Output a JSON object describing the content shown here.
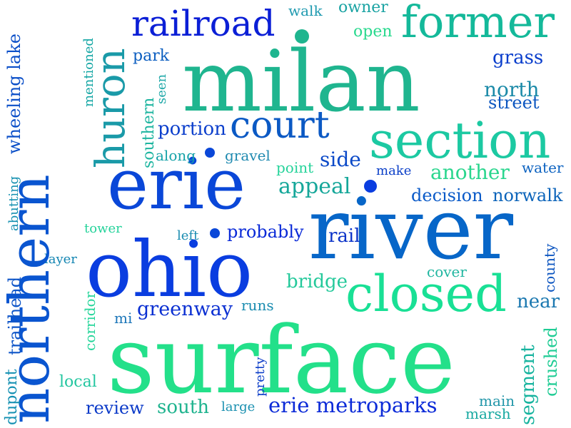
{
  "words": [
    {
      "id": "surface",
      "text": "surface",
      "color": "#23E08A"
    },
    {
      "id": "milan",
      "text": "milan",
      "color": "#1FB58F"
    },
    {
      "id": "river",
      "text": "river",
      "color": "#0766C8"
    },
    {
      "id": "ohio",
      "text": "ohio",
      "color": "#0A3DE0"
    },
    {
      "id": "erie",
      "text": "erie",
      "color": "#0A47D8"
    },
    {
      "id": "northern",
      "text": "northern",
      "color": "#0A55D0"
    },
    {
      "id": "section",
      "text": "section",
      "color": "#1CC9A2"
    },
    {
      "id": "closed",
      "text": "closed",
      "color": "#19E095"
    },
    {
      "id": "former",
      "text": "former",
      "color": "#14B99A"
    },
    {
      "id": "court",
      "text": "court",
      "color": "#0B59C4"
    },
    {
      "id": "railroad",
      "text": "railroad",
      "color": "#0B1FD6"
    },
    {
      "id": "huron",
      "text": "huron",
      "color": "#1A9AA8"
    },
    {
      "id": "erie-metroparks",
      "text": "erie metroparks",
      "color": "#0C2BD8"
    },
    {
      "id": "greenway",
      "text": "greenway",
      "color": "#0A2FD2"
    },
    {
      "id": "another",
      "text": "another",
      "color": "#2AD68E"
    },
    {
      "id": "appeal",
      "text": "appeal",
      "color": "#16A79A"
    },
    {
      "id": "grass",
      "text": "grass",
      "color": "#0A3ECC"
    },
    {
      "id": "north",
      "text": "north",
      "color": "#1B8AA8"
    },
    {
      "id": "street",
      "text": "street",
      "color": "#0C56C0"
    },
    {
      "id": "wheeling-lake",
      "text": "wheeling lake",
      "color": "#0B4FC8"
    },
    {
      "id": "probably",
      "text": "probably",
      "color": "#0A2AD8"
    },
    {
      "id": "rail",
      "text": "rail",
      "color": "#0B33C8"
    },
    {
      "id": "side",
      "text": "side",
      "color": "#0C4AC8"
    },
    {
      "id": "portion",
      "text": "portion",
      "color": "#0C3FCC"
    },
    {
      "id": "bridge",
      "text": "bridge",
      "color": "#25C99B"
    },
    {
      "id": "near",
      "text": "near",
      "color": "#1B78B0"
    },
    {
      "id": "decision",
      "text": "decision",
      "color": "#0A5AC8"
    },
    {
      "id": "norwalk",
      "text": "norwalk",
      "color": "#0C64BA"
    },
    {
      "id": "southern",
      "text": "southern",
      "color": "#1EB5A0"
    },
    {
      "id": "trailhead",
      "text": "trailhead",
      "color": "#0F56C8"
    },
    {
      "id": "south",
      "text": "south",
      "color": "#1EB38E"
    },
    {
      "id": "review",
      "text": "review",
      "color": "#0B3AC8"
    },
    {
      "id": "segment",
      "text": "segment",
      "color": "#16B39E"
    },
    {
      "id": "crushed",
      "text": "crushed",
      "color": "#1FCC94"
    },
    {
      "id": "mentioned",
      "text": "mentioned",
      "color": "#13A6A4"
    },
    {
      "id": "park",
      "text": "park",
      "color": "#0C5EC0"
    },
    {
      "id": "owner",
      "text": "owner",
      "color": "#1AA3A3"
    },
    {
      "id": "open",
      "text": "open",
      "color": "#29D98E"
    },
    {
      "id": "walk",
      "text": "walk",
      "color": "#1F9AB0"
    },
    {
      "id": "seen",
      "text": "seen",
      "color": "#1FA8A8"
    },
    {
      "id": "along",
      "text": "along",
      "color": "#15A2A8"
    },
    {
      "id": "gravel",
      "text": "gravel",
      "color": "#1F8AB0"
    },
    {
      "id": "point",
      "text": "point",
      "color": "#25D39A"
    },
    {
      "id": "make",
      "text": "make",
      "color": "#0B3FC8"
    },
    {
      "id": "water",
      "text": "water",
      "color": "#0C62C0"
    },
    {
      "id": "abutting",
      "text": "abutting",
      "color": "#1590B0"
    },
    {
      "id": "tower",
      "text": "tower",
      "color": "#26D39B"
    },
    {
      "id": "left",
      "text": "left",
      "color": "#1A8CB0"
    },
    {
      "id": "layer",
      "text": "layer",
      "color": "#1385B2"
    },
    {
      "id": "cover",
      "text": "cover",
      "color": "#20B6A0"
    },
    {
      "id": "county",
      "text": "county",
      "color": "#0C55C0"
    },
    {
      "id": "runs",
      "text": "runs",
      "color": "#1A8CB0"
    },
    {
      "id": "corridor",
      "text": "corridor",
      "color": "#27D69B"
    },
    {
      "id": "mi",
      "text": "mi",
      "color": "#1A75B8"
    },
    {
      "id": "dupont",
      "text": "dupont",
      "color": "#1390B2"
    },
    {
      "id": "local",
      "text": "local",
      "color": "#24C6A0"
    },
    {
      "id": "pretty",
      "text": "pretty",
      "color": "#0B3DC8"
    },
    {
      "id": "large",
      "text": "large",
      "color": "#1A90B0"
    },
    {
      "id": "main",
      "text": "main",
      "color": "#1F95A8"
    },
    {
      "id": "marsh",
      "text": "marsh",
      "color": "#15A8A0"
    }
  ],
  "dots": [
    {
      "id": "dot-1",
      "color": "#0A47D8"
    },
    {
      "id": "dot-2",
      "color": "#0A47D8"
    },
    {
      "id": "dot-3",
      "color": "#1FB58F"
    },
    {
      "id": "dot-4",
      "color": "#0A3DE0"
    }
  ]
}
